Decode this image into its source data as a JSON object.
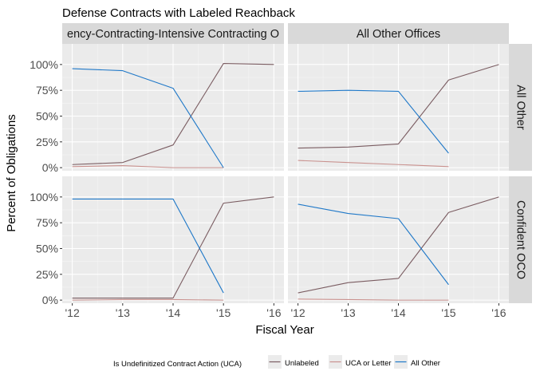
{
  "chart_data": {
    "type": "line",
    "title": "Defense Contracts with Labeled Reachback",
    "xlabel": "Fiscal Year",
    "ylabel": "Percent of Obligations",
    "x": [
      2012,
      2013,
      2014,
      2015,
      2016
    ],
    "x_tick_labels": [
      "'12",
      "'13",
      "'14",
      "'15",
      "'16"
    ],
    "y_ticks": [
      0,
      25,
      50,
      75,
      100
    ],
    "y_tick_labels": [
      "0%",
      "25%",
      "50%",
      "75%",
      "100%"
    ],
    "ylim": [
      -3,
      120
    ],
    "xlim": [
      2011.8,
      2016.2
    ],
    "grid": true,
    "column_facets": [
      "ency-Contracting-Intensive Contracting O",
      "All Other Offices"
    ],
    "row_facets": [
      "All Other",
      "Confident OCO"
    ],
    "legend": {
      "title": "Is Undefinitized Contract Action (UCA)",
      "position": "bottom",
      "items": [
        {
          "name": "Unlabeled",
          "color": "#7a5c61"
        },
        {
          "name": "UCA or Letter",
          "color": "#c9918e"
        },
        {
          "name": "All Other",
          "color": "#1f78c8"
        }
      ]
    },
    "panels": [
      {
        "row": 0,
        "col": 0,
        "series": [
          {
            "name": "Unlabeled",
            "x": [
              2012,
              2013,
              2014,
              2015,
              2016
            ],
            "values": [
              3,
              5,
              22,
              101,
              100
            ]
          },
          {
            "name": "UCA or Letter",
            "x": [
              2012,
              2013,
              2014,
              2015
            ],
            "values": [
              1,
              2,
              0,
              0
            ]
          },
          {
            "name": "All Other",
            "x": [
              2012,
              2013,
              2014,
              2015
            ],
            "values": [
              96,
              94,
              77,
              0
            ]
          }
        ]
      },
      {
        "row": 0,
        "col": 1,
        "series": [
          {
            "name": "Unlabeled",
            "x": [
              2012,
              2013,
              2014,
              2015,
              2016
            ],
            "values": [
              19,
              20,
              23,
              85,
              100
            ]
          },
          {
            "name": "UCA or Letter",
            "x": [
              2012,
              2013,
              2014,
              2015
            ],
            "values": [
              7,
              5,
              3,
              1
            ]
          },
          {
            "name": "All Other",
            "x": [
              2012,
              2013,
              2014,
              2015
            ],
            "values": [
              74,
              75,
              74,
              14
            ]
          }
        ]
      },
      {
        "row": 1,
        "col": 0,
        "series": [
          {
            "name": "Unlabeled",
            "x": [
              2012,
              2013,
              2014,
              2015,
              2016
            ],
            "values": [
              2,
              2,
              2,
              94,
              100
            ]
          },
          {
            "name": "UCA or Letter",
            "x": [
              2012,
              2013,
              2014,
              2015
            ],
            "values": [
              0,
              0.5,
              0.5,
              0
            ]
          },
          {
            "name": "All Other",
            "x": [
              2012,
              2013,
              2014,
              2015
            ],
            "values": [
              98,
              98,
              98,
              7
            ]
          }
        ]
      },
      {
        "row": 1,
        "col": 1,
        "series": [
          {
            "name": "Unlabeled",
            "x": [
              2012,
              2013,
              2014,
              2015,
              2016
            ],
            "values": [
              7,
              17,
              21,
              85,
              100
            ]
          },
          {
            "name": "UCA or Letter",
            "x": [
              2012,
              2013,
              2014,
              2015
            ],
            "values": [
              1,
              0.5,
              0,
              0
            ]
          },
          {
            "name": "All Other",
            "x": [
              2012,
              2013,
              2014,
              2015
            ],
            "values": [
              93,
              84,
              79,
              15
            ]
          }
        ]
      }
    ]
  }
}
